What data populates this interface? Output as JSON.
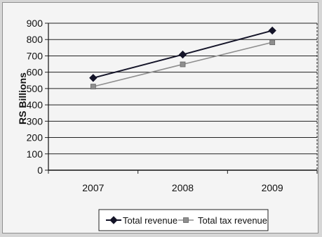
{
  "chart_data": {
    "type": "line",
    "categories": [
      "2007",
      "2008",
      "2009"
    ],
    "series": [
      {
        "name": "Total revenue",
        "values": [
          565,
          708,
          855
        ],
        "color": "#141428",
        "marker": "diamond"
      },
      {
        "name": "Total tax revenue",
        "values": [
          512,
          648,
          783
        ],
        "color": "#8e8e8e",
        "marker": "square"
      }
    ],
    "title": "",
    "xlabel": "",
    "ylabel": "RS Billions",
    "ylim": [
      0,
      900
    ],
    "yticks": [
      0,
      100,
      200,
      300,
      400,
      500,
      600,
      700,
      800,
      900
    ],
    "grid": true,
    "legend_position": "bottom"
  }
}
